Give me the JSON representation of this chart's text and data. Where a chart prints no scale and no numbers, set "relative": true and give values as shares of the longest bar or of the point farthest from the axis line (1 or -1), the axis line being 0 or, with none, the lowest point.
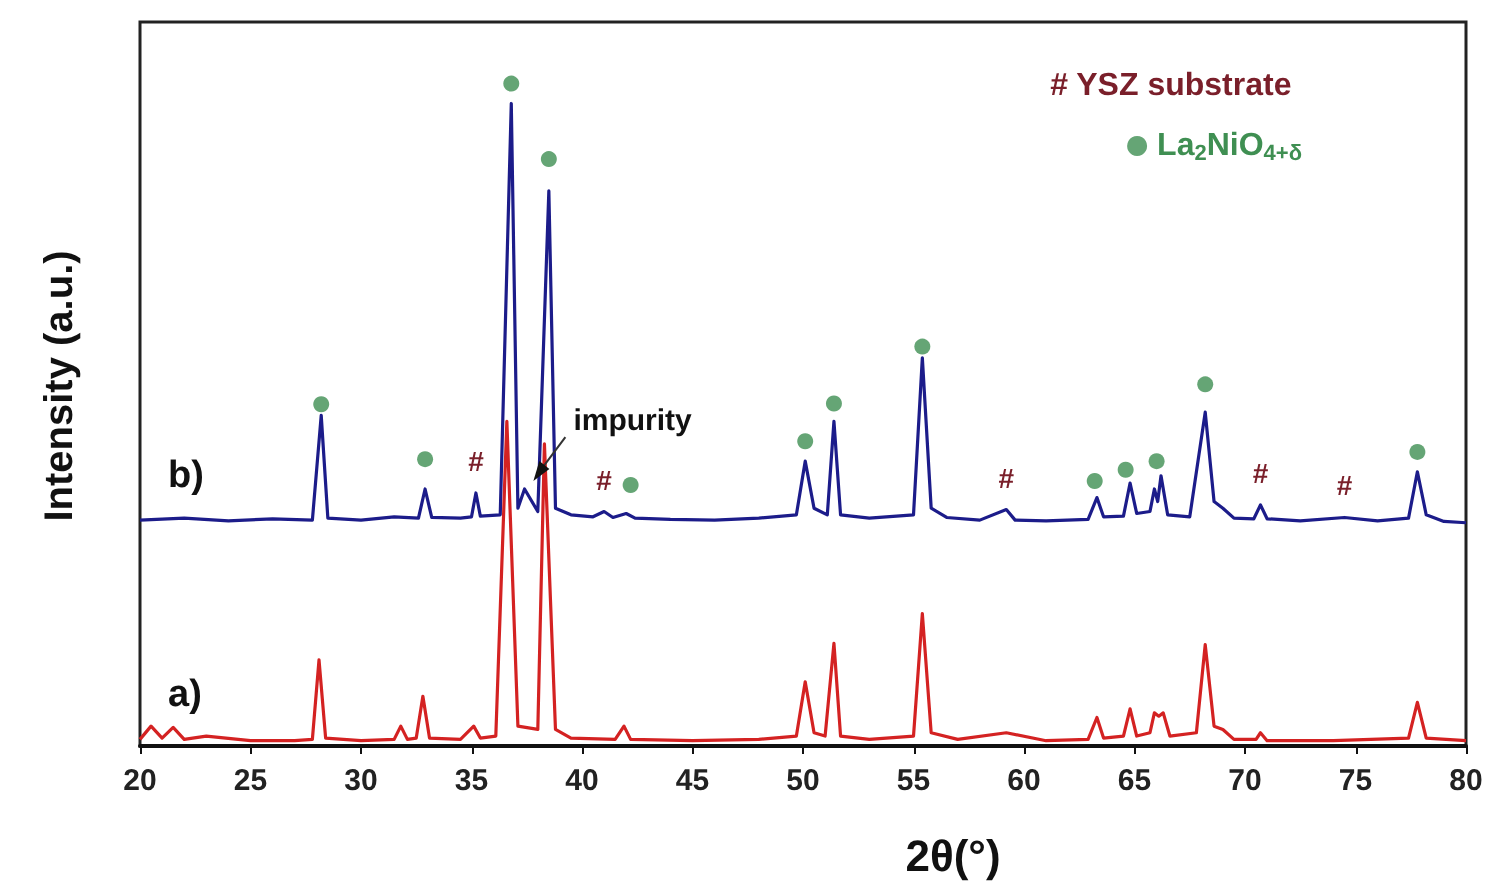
{
  "chart_data": {
    "type": "line",
    "relative": true,
    "xlabel": "2θ(°)",
    "ylabel": "Intensity (a.u.)",
    "xlim": [
      20,
      80
    ],
    "xticks": [
      20,
      25,
      30,
      35,
      40,
      45,
      50,
      55,
      60,
      65,
      70,
      75,
      80
    ],
    "grid": false,
    "legend": "top right",
    "marker": "none",
    "annotations": [
      "# YSZ substrate",
      {
        "text": "impurity",
        "x": 37.8,
        "y": 0.4
      },
      {
        "text": "#",
        "x": 35.2,
        "y": 0.382
      },
      {
        "text": "#",
        "x": 41.0,
        "y": 0.354
      },
      {
        "text": "#",
        "x": 59.2,
        "y": 0.357
      },
      {
        "text": "#",
        "x": 70.7,
        "y": 0.364
      },
      {
        "text": "#",
        "x": 74.5,
        "y": 0.345
      }
    ],
    "series": [
      {
        "name": "b)",
        "color": "#1c1c8a",
        "x": [
          20,
          22,
          24,
          26,
          27.8,
          28.2,
          28.5,
          30,
          31.5,
          32.6,
          32.9,
          33.2,
          34.5,
          35.0,
          35.2,
          35.4,
          36.3,
          36.8,
          37.1,
          37.4,
          38.0,
          38.5,
          38.8,
          39.5,
          40.5,
          41.0,
          41.4,
          42.0,
          42.4,
          44,
          46,
          48,
          49.7,
          50.1,
          50.5,
          51.1,
          51.4,
          51.7,
          53,
          55.0,
          55.4,
          55.8,
          56.5,
          58,
          59.2,
          59.6,
          61,
          62.9,
          63.3,
          63.6,
          64.5,
          64.8,
          65.1,
          65.7,
          65.9,
          66.05,
          66.2,
          66.5,
          67.5,
          68.2,
          68.6,
          69.0,
          69.5,
          70.4,
          70.7,
          71.0,
          72.5,
          74.5,
          76,
          77.4,
          77.8,
          78.2,
          79,
          80
        ],
        "values": [
          0.341,
          0.344,
          0.34,
          0.343,
          0.341,
          0.499,
          0.344,
          0.341,
          0.346,
          0.344,
          0.388,
          0.345,
          0.344,
          0.346,
          0.382,
          0.347,
          0.349,
          0.97,
          0.359,
          0.388,
          0.354,
          0.838,
          0.359,
          0.349,
          0.346,
          0.354,
          0.345,
          0.351,
          0.344,
          0.342,
          0.341,
          0.344,
          0.349,
          0.43,
          0.359,
          0.349,
          0.49,
          0.349,
          0.344,
          0.349,
          0.586,
          0.359,
          0.345,
          0.341,
          0.357,
          0.341,
          0.34,
          0.342,
          0.375,
          0.346,
          0.347,
          0.397,
          0.351,
          0.354,
          0.388,
          0.369,
          0.408,
          0.349,
          0.346,
          0.504,
          0.369,
          0.359,
          0.344,
          0.343,
          0.364,
          0.343,
          0.34,
          0.345,
          0.34,
          0.344,
          0.414,
          0.349,
          0.339,
          0.337
        ]
      },
      {
        "name": "a)",
        "color": "#d42222",
        "x": [
          20,
          20.5,
          21,
          21.5,
          22,
          23,
          25,
          27,
          27.8,
          28.1,
          28.4,
          30,
          31.5,
          31.8,
          32.1,
          32.5,
          32.8,
          33.1,
          34.5,
          35.1,
          35.4,
          36.1,
          36.6,
          37.1,
          38.0,
          38.3,
          38.8,
          39.5,
          41.5,
          41.9,
          42.2,
          45,
          48,
          49.7,
          50.1,
          50.5,
          51.0,
          51.4,
          51.7,
          53,
          55.0,
          55.4,
          55.8,
          57,
          59.2,
          61,
          62.9,
          63.3,
          63.6,
          64.5,
          64.8,
          65.1,
          65.7,
          65.9,
          66.1,
          66.3,
          66.6,
          67.8,
          68.2,
          68.6,
          69.0,
          69.5,
          70.5,
          70.7,
          71.0,
          74,
          77.4,
          77.8,
          78.2,
          80
        ],
        "values": [
          0.01,
          0.03,
          0.012,
          0.028,
          0.01,
          0.015,
          0.008,
          0.008,
          0.01,
          0.13,
          0.012,
          0.008,
          0.01,
          0.03,
          0.01,
          0.012,
          0.075,
          0.012,
          0.01,
          0.03,
          0.012,
          0.015,
          0.49,
          0.03,
          0.025,
          0.456,
          0.025,
          0.012,
          0.01,
          0.03,
          0.01,
          0.008,
          0.01,
          0.015,
          0.097,
          0.02,
          0.015,
          0.155,
          0.015,
          0.01,
          0.015,
          0.2,
          0.02,
          0.01,
          0.02,
          0.008,
          0.01,
          0.043,
          0.012,
          0.015,
          0.056,
          0.015,
          0.02,
          0.05,
          0.045,
          0.05,
          0.015,
          0.02,
          0.153,
          0.03,
          0.025,
          0.01,
          0.01,
          0.02,
          0.008,
          0.008,
          0.012,
          0.066,
          0.012,
          0.008
        ]
      },
      {
        "name": "La$_{2}$NiO$_{4+δ}$",
        "type": "scatter",
        "marker": "circle",
        "color": "#3f8f52",
        "x": [
          28.2,
          32.9,
          36.8,
          38.5,
          42.2,
          50.1,
          51.4,
          55.4,
          63.2,
          64.6,
          66.0,
          68.2,
          77.8
        ],
        "values": [
          0.516,
          0.433,
          1.0,
          0.886,
          0.394,
          0.46,
          0.517,
          0.603,
          0.4,
          0.417,
          0.43,
          0.546,
          0.444
        ]
      }
    ]
  }
}
